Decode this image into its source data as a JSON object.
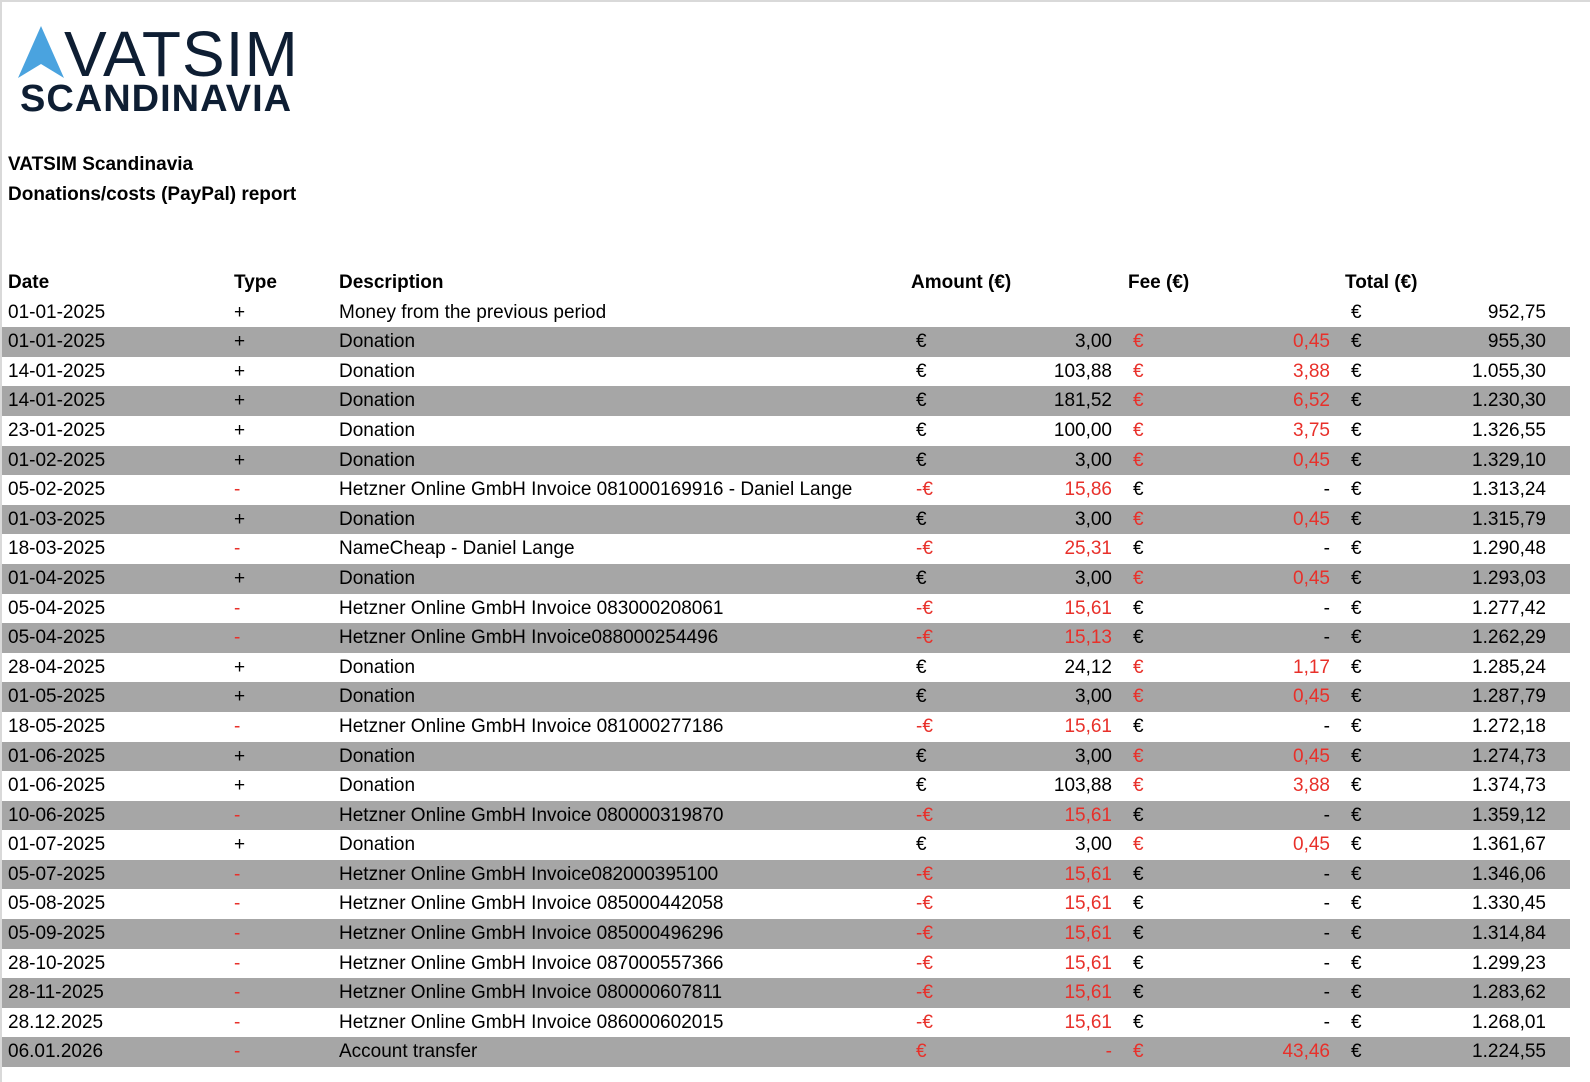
{
  "logo": {
    "line1": "VATSIM",
    "line2": "SCANDINAVIA",
    "triangle_color": "#4aa3df",
    "text_color": "#0e1e33"
  },
  "report": {
    "org": "VATSIM Scandinavia",
    "title": "Donations/costs (PayPal) report"
  },
  "columns": {
    "date": "Date",
    "type": "Type",
    "description": "Description",
    "amount": "Amount (€)",
    "fee": "Fee (€)",
    "total": "Total (€)"
  },
  "colors": {
    "negative": "#e8302a",
    "shaded_row": "#a6a6a6"
  },
  "rows": [
    {
      "date": "01-01-2025",
      "type": "+",
      "desc": "Money from the previous period",
      "amt_cur": "",
      "amt": "",
      "fee_cur": "",
      "fee": "",
      "tot_cur": "€",
      "tot": "952,75",
      "amt_neg": false,
      "fee_neg": false
    },
    {
      "date": "01-01-2025",
      "type": "+",
      "desc": "Donation",
      "amt_cur": "€",
      "amt": "3,00",
      "fee_cur": "€",
      "fee": "0,45",
      "tot_cur": "€",
      "tot": "955,30",
      "amt_neg": false,
      "fee_neg": true
    },
    {
      "date": "14-01-2025",
      "type": "+",
      "desc": "Donation",
      "amt_cur": "€",
      "amt": "103,88",
      "fee_cur": "€",
      "fee": "3,88",
      "tot_cur": "€",
      "tot": "1.055,30",
      "amt_neg": false,
      "fee_neg": true
    },
    {
      "date": "14-01-2025",
      "type": "+",
      "desc": "Donation",
      "amt_cur": "€",
      "amt": "181,52",
      "fee_cur": "€",
      "fee": "6,52",
      "tot_cur": "€",
      "tot": "1.230,30",
      "amt_neg": false,
      "fee_neg": true
    },
    {
      "date": "23-01-2025",
      "type": "+",
      "desc": "Donation",
      "amt_cur": "€",
      "amt": "100,00",
      "fee_cur": "€",
      "fee": "3,75",
      "tot_cur": "€",
      "tot": "1.326,55",
      "amt_neg": false,
      "fee_neg": true
    },
    {
      "date": "01-02-2025",
      "type": "+",
      "desc": "Donation",
      "amt_cur": "€",
      "amt": "3,00",
      "fee_cur": "€",
      "fee": "0,45",
      "tot_cur": "€",
      "tot": "1.329,10",
      "amt_neg": false,
      "fee_neg": true
    },
    {
      "date": "05-02-2025",
      "type": "-",
      "desc": "Hetzner Online GmbH Invoice 081000169916 - Daniel Lange",
      "amt_cur": "-€",
      "amt": "15,86",
      "fee_cur": "€",
      "fee": "-",
      "tot_cur": "€",
      "tot": "1.313,24",
      "amt_neg": true,
      "fee_neg": false
    },
    {
      "date": "01-03-2025",
      "type": "+",
      "desc": "Donation",
      "amt_cur": "€",
      "amt": "3,00",
      "fee_cur": "€",
      "fee": "0,45",
      "tot_cur": "€",
      "tot": "1.315,79",
      "amt_neg": false,
      "fee_neg": true
    },
    {
      "date": "18-03-2025",
      "type": "-",
      "desc": "NameCheap - Daniel Lange",
      "amt_cur": "-€",
      "amt": "25,31",
      "fee_cur": "€",
      "fee": "-",
      "tot_cur": "€",
      "tot": "1.290,48",
      "amt_neg": true,
      "fee_neg": false
    },
    {
      "date": "01-04-2025",
      "type": "+",
      "desc": "Donation",
      "amt_cur": "€",
      "amt": "3,00",
      "fee_cur": "€",
      "fee": "0,45",
      "tot_cur": "€",
      "tot": "1.293,03",
      "amt_neg": false,
      "fee_neg": true
    },
    {
      "date": "05-04-2025",
      "type": "-",
      "desc": "Hetzner Online GmbH Invoice 083000208061",
      "amt_cur": "-€",
      "amt": "15,61",
      "fee_cur": "€",
      "fee": "-",
      "tot_cur": "€",
      "tot": "1.277,42",
      "amt_neg": true,
      "fee_neg": false
    },
    {
      "date": "05-04-2025",
      "type": "-",
      "desc": "Hetzner Online GmbH Invoice088000254496",
      "amt_cur": "-€",
      "amt": "15,13",
      "fee_cur": "€",
      "fee": "-",
      "tot_cur": "€",
      "tot": "1.262,29",
      "amt_neg": true,
      "fee_neg": false
    },
    {
      "date": "28-04-2025",
      "type": "+",
      "desc": "Donation",
      "amt_cur": "€",
      "amt": "24,12",
      "fee_cur": "€",
      "fee": "1,17",
      "tot_cur": "€",
      "tot": "1.285,24",
      "amt_neg": false,
      "fee_neg": true
    },
    {
      "date": "01-05-2025",
      "type": "+",
      "desc": "Donation",
      "amt_cur": "€",
      "amt": "3,00",
      "fee_cur": "€",
      "fee": "0,45",
      "tot_cur": "€",
      "tot": "1.287,79",
      "amt_neg": false,
      "fee_neg": true
    },
    {
      "date": "18-05-2025",
      "type": "-",
      "desc": "Hetzner Online GmbH Invoice 081000277186",
      "amt_cur": "-€",
      "amt": "15,61",
      "fee_cur": "€",
      "fee": "-",
      "tot_cur": "€",
      "tot": "1.272,18",
      "amt_neg": true,
      "fee_neg": false
    },
    {
      "date": "01-06-2025",
      "type": "+",
      "desc": "Donation",
      "amt_cur": "€",
      "amt": "3,00",
      "fee_cur": "€",
      "fee": "0,45",
      "tot_cur": "€",
      "tot": "1.274,73",
      "amt_neg": false,
      "fee_neg": true
    },
    {
      "date": "01-06-2025",
      "type": "+",
      "desc": "Donation",
      "amt_cur": "€",
      "amt": "103,88",
      "fee_cur": "€",
      "fee": "3,88",
      "tot_cur": "€",
      "tot": "1.374,73",
      "amt_neg": false,
      "fee_neg": true
    },
    {
      "date": "10-06-2025",
      "type": "-",
      "desc": "Hetzner Online GmbH Invoice 080000319870",
      "amt_cur": "-€",
      "amt": "15,61",
      "fee_cur": "€",
      "fee": "-",
      "tot_cur": "€",
      "tot": "1.359,12",
      "amt_neg": true,
      "fee_neg": false
    },
    {
      "date": "01-07-2025",
      "type": "+",
      "desc": "Donation",
      "amt_cur": "€",
      "amt": "3,00",
      "fee_cur": "€",
      "fee": "0,45",
      "tot_cur": "€",
      "tot": "1.361,67",
      "amt_neg": false,
      "fee_neg": true
    },
    {
      "date": "05-07-2025",
      "type": "-",
      "desc": "Hetzner Online GmbH Invoice082000395100",
      "amt_cur": "-€",
      "amt": "15,61",
      "fee_cur": "€",
      "fee": "-",
      "tot_cur": "€",
      "tot": "1.346,06",
      "amt_neg": true,
      "fee_neg": false
    },
    {
      "date": "05-08-2025",
      "type": "-",
      "desc": "Hetzner Online GmbH Invoice 085000442058",
      "amt_cur": "-€",
      "amt": "15,61",
      "fee_cur": "€",
      "fee": "-",
      "tot_cur": "€",
      "tot": "1.330,45",
      "amt_neg": true,
      "fee_neg": false
    },
    {
      "date": "05-09-2025",
      "type": "-",
      "desc": "Hetzner Online GmbH Invoice 085000496296",
      "amt_cur": "-€",
      "amt": "15,61",
      "fee_cur": "€",
      "fee": "-",
      "tot_cur": "€",
      "tot": "1.314,84",
      "amt_neg": true,
      "fee_neg": false
    },
    {
      "date": "28-10-2025",
      "type": "-",
      "desc": "Hetzner Online GmbH Invoice 087000557366",
      "amt_cur": "-€",
      "amt": "15,61",
      "fee_cur": "€",
      "fee": "-",
      "tot_cur": "€",
      "tot": "1.299,23",
      "amt_neg": true,
      "fee_neg": false
    },
    {
      "date": "28-11-2025",
      "type": "-",
      "desc": "Hetzner Online GmbH Invoice 080000607811",
      "amt_cur": "-€",
      "amt": "15,61",
      "fee_cur": "€",
      "fee": "-",
      "tot_cur": "€",
      "tot": "1.283,62",
      "amt_neg": true,
      "fee_neg": false
    },
    {
      "date": "28.12.2025",
      "type": "-",
      "desc": "Hetzner Online GmbH Invoice 086000602015",
      "amt_cur": "-€",
      "amt": "15,61",
      "fee_cur": "€",
      "fee": "-",
      "tot_cur": "€",
      "tot": "1.268,01",
      "amt_neg": true,
      "fee_neg": false
    },
    {
      "date": "06.01.2026",
      "type": "-",
      "desc": "Account transfer",
      "amt_cur": "€",
      "amt": "-",
      "fee_cur": "€",
      "fee": "43,46",
      "tot_cur": "€",
      "tot": "1.224,55",
      "amt_neg": true,
      "fee_neg": true
    }
  ]
}
